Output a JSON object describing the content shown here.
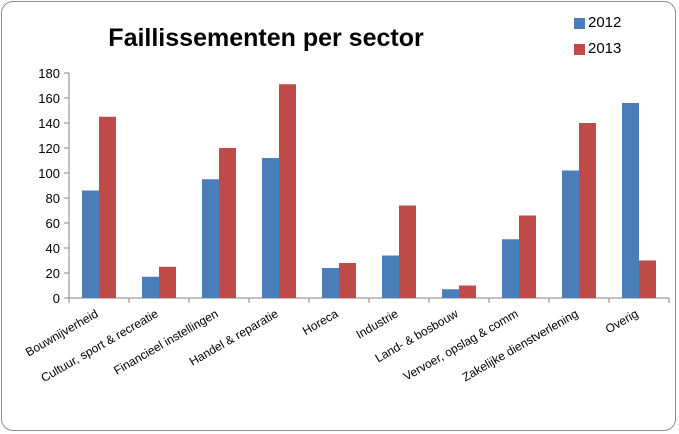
{
  "colors": {
    "series_2012": "#4a7ebb",
    "series_2013": "#be4b48",
    "axis": "#868686"
  },
  "chart_data": {
    "type": "bar",
    "title": "Faillissementen per sector",
    "categories": [
      "Bouwnijverheid",
      "Cultuur, sport & recreatie",
      "Financieel instellingen",
      "Handel & reparatie",
      "Horeca",
      "Industrie",
      "Land- & bosbouw",
      "Vervoer, opslag & comm",
      "Zakelijke dienstverlening",
      "Overig"
    ],
    "series": [
      {
        "name": "2012",
        "values": [
          86,
          17,
          95,
          112,
          24,
          34,
          7,
          47,
          102,
          156
        ]
      },
      {
        "name": "2013",
        "values": [
          145,
          25,
          120,
          171,
          28,
          74,
          10,
          66,
          140,
          30
        ]
      }
    ],
    "ylim": [
      0,
      180
    ],
    "yticks": [
      "0",
      "20",
      "40",
      "60",
      "80",
      "100",
      "120",
      "140",
      "160",
      "180"
    ],
    "legend_position": "top-right",
    "grid": false
  }
}
